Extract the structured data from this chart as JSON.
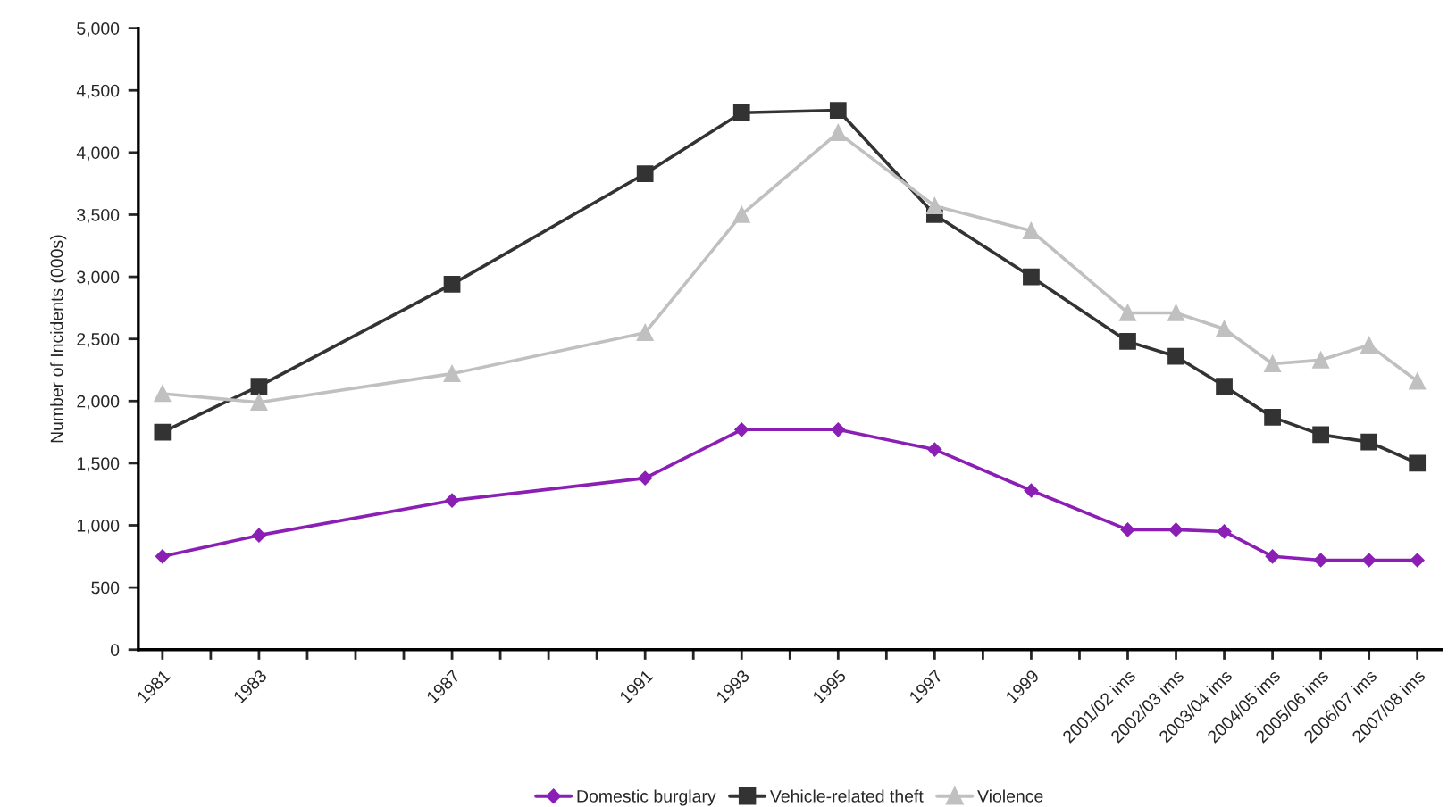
{
  "chart_data": {
    "type": "line",
    "ylabel": "Number of Incidents (000s)",
    "x": [
      1981,
      1983,
      1987,
      1991,
      1993,
      1995,
      1997,
      1999,
      2001,
      2002,
      2003,
      2004,
      2005,
      2006,
      2007
    ],
    "series": [
      {
        "name": "Domestic burglary",
        "color": "#8b1fb5",
        "marker": "diamond",
        "values": [
          750,
          920,
          1200,
          1380,
          1770,
          1770,
          1610,
          1280,
          965,
          965,
          950,
          750,
          720,
          720,
          720
        ]
      },
      {
        "name": "Vehicle-related theft",
        "color": "#333333",
        "marker": "square",
        "values": [
          1750,
          2120,
          2940,
          3830,
          4320,
          4340,
          3500,
          3000,
          2480,
          2360,
          2120,
          1870,
          1730,
          1670,
          1500
        ]
      },
      {
        "name": "Violence",
        "color": "#c0c0c0",
        "marker": "triangle",
        "values": [
          2060,
          1990,
          2220,
          2550,
          3500,
          4160,
          3570,
          3370,
          2710,
          2710,
          2580,
          2300,
          2330,
          2450,
          2160
        ]
      }
    ],
    "xlim": [
      1980.5,
      2007.5
    ],
    "xticks": [
      {
        "value": 1981,
        "label": "1981"
      },
      {
        "value": 1982,
        "label": null
      },
      {
        "value": 1983,
        "label": "1983"
      },
      {
        "value": 1984,
        "label": null
      },
      {
        "value": 1985,
        "label": null
      },
      {
        "value": 1986,
        "label": null
      },
      {
        "value": 1987,
        "label": "1987"
      },
      {
        "value": 1988,
        "label": null
      },
      {
        "value": 1989,
        "label": null
      },
      {
        "value": 1990,
        "label": null
      },
      {
        "value": 1991,
        "label": "1991"
      },
      {
        "value": 1992,
        "label": null
      },
      {
        "value": 1993,
        "label": "1993"
      },
      {
        "value": 1994,
        "label": null
      },
      {
        "value": 1995,
        "label": "1995"
      },
      {
        "value": 1996,
        "label": null
      },
      {
        "value": 1997,
        "label": "1997"
      },
      {
        "value": 1998,
        "label": null
      },
      {
        "value": 1999,
        "label": "1999"
      },
      {
        "value": 2000,
        "label": null
      },
      {
        "value": 2001,
        "label": "2001/02 ims"
      },
      {
        "value": 2002,
        "label": "2002/03 ims"
      },
      {
        "value": 2003,
        "label": "2003/04 ims"
      },
      {
        "value": 2004,
        "label": "2004/05 ims"
      },
      {
        "value": 2005,
        "label": "2005/06 ims"
      },
      {
        "value": 2006,
        "label": "2006/07 ims"
      },
      {
        "value": 2007,
        "label": "2007/08 ims"
      }
    ],
    "ylim": [
      0,
      5000
    ],
    "yticks": [
      {
        "value": 0,
        "label": "0"
      },
      {
        "value": 500,
        "label": "500"
      },
      {
        "value": 1000,
        "label": "1,000"
      },
      {
        "value": 1500,
        "label": "1,500"
      },
      {
        "value": 2000,
        "label": "2,000"
      },
      {
        "value": 2500,
        "label": "2,500"
      },
      {
        "value": 3000,
        "label": "3,000"
      },
      {
        "value": 3500,
        "label": "3,500"
      },
      {
        "value": 4000,
        "label": "4,000"
      },
      {
        "value": 4500,
        "label": "4,500"
      },
      {
        "value": 5000,
        "label": "5,000"
      }
    ],
    "grid": false,
    "legend": "bottom",
    "line_style": "solid"
  }
}
